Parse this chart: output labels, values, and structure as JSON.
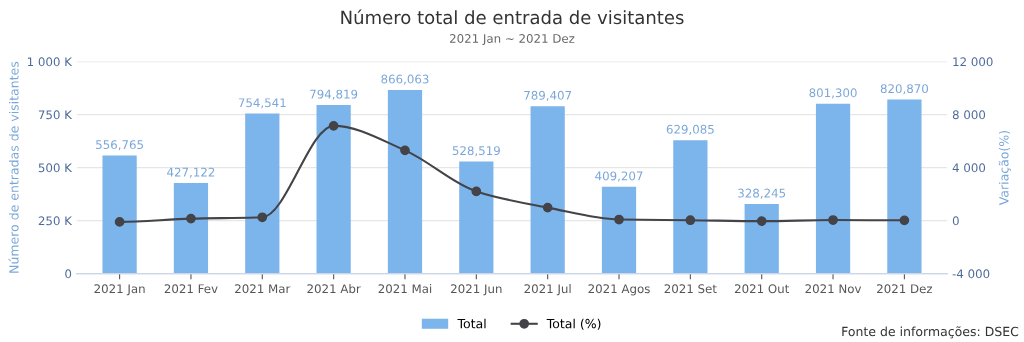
{
  "chart_data": {
    "type": "bar",
    "title": "Número total de entrada de visitantes",
    "subtitle": "2021 Jan ~ 2021 Dez",
    "ylabel": "Número de entradas de visitantes",
    "y2label": "Variação(%)",
    "categories": [
      "2021 Jan",
      "2021 Fev",
      "2021 Mar",
      "2021 Abr",
      "2021 Mai",
      "2021 Jun",
      "2021 Jul",
      "2021 Agos",
      "2021 Set",
      "2021 Out",
      "2021 Nov",
      "2021 Dez"
    ],
    "series": [
      {
        "name": "Total",
        "color": "#7cb5ec",
        "values": [
          556765,
          427122,
          754541,
          794819,
          866063,
          528519,
          789407,
          409207,
          629085,
          328245,
          801300,
          820870
        ],
        "value_labels": [
          "556,765",
          "427,122",
          "754,541",
          "794,819",
          "866,063",
          "528,519",
          "789,407",
          "409,207",
          "629,085",
          "328,245",
          "801,300",
          "820,870"
        ]
      },
      {
        "name": "Total (%)",
        "type": "line",
        "axis": "y2",
        "color": "#434348",
        "marker": "circle",
        "values": [
          -100,
          150,
          250,
          7150,
          5300,
          2200,
          980,
          80,
          30,
          -40,
          40,
          20
        ]
      }
    ],
    "ylim": [
      0,
      1000000
    ],
    "yticks": [
      {
        "value": 0,
        "label": "0"
      },
      {
        "value": 250000,
        "label": "250 K"
      },
      {
        "value": 500000,
        "label": "500 K"
      },
      {
        "value": 750000,
        "label": "750 K"
      },
      {
        "value": 1000000,
        "label": "1 000 K"
      }
    ],
    "y2lim": [
      -4000,
      12000
    ],
    "y2ticks": [
      {
        "value": -4000,
        "label": "-4 000"
      },
      {
        "value": 0,
        "label": "0"
      },
      {
        "value": 4000,
        "label": "4 000"
      },
      {
        "value": 8000,
        "label": "8 000"
      },
      {
        "value": 12000,
        "label": "12 000"
      }
    ],
    "grid": "y",
    "legend": "bottom",
    "annotations": [
      "Fonte de informações: DSEC"
    ]
  }
}
